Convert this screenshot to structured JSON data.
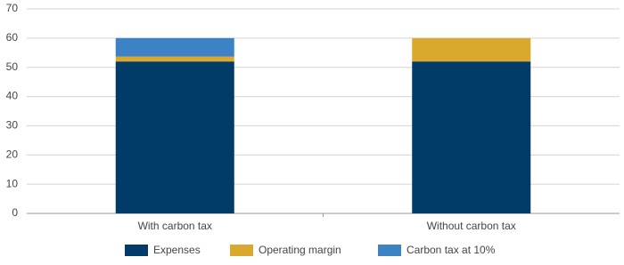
{
  "chart_data": {
    "type": "stacked_bar",
    "categories": [
      "With carbon tax",
      "Without carbon tax"
    ],
    "series": [
      {
        "name": "Expenses",
        "color": "#013b68",
        "values": [
          52,
          52
        ]
      },
      {
        "name": "Operating margin",
        "color": "#d9a82c",
        "values": [
          1.7,
          8
        ]
      },
      {
        "name": "Carbon tax at 10%",
        "color": "#3b83c4",
        "values": [
          6.3,
          0
        ]
      }
    ],
    "ylim": [
      0,
      70
    ],
    "yticks": [
      0,
      10,
      20,
      30,
      40,
      50,
      60,
      70
    ],
    "grid": true,
    "legend": "bottom"
  }
}
